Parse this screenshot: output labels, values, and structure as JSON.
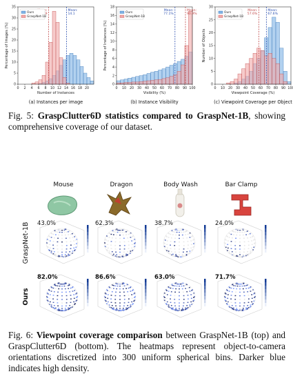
{
  "chart_data": [
    {
      "type": "histogram",
      "title": "(a) Instances per image",
      "x_label": "Number of Instances",
      "y_label": "Percentage of Images (%)",
      "bins": [
        0,
        1,
        2,
        3,
        4,
        5,
        6,
        7,
        8,
        9,
        10,
        11,
        12,
        13,
        14,
        15,
        16,
        17,
        18,
        19,
        20,
        21,
        22
      ],
      "series": [
        {
          "name": "Ours",
          "color": "#7fb2e5",
          "edge": "#3b78b8",
          "values": [
            0,
            0,
            0,
            0,
            0,
            0,
            0.3,
            0.8,
            1.5,
            2.5,
            4,
            6,
            8.5,
            11,
            13,
            14,
            13,
            11,
            8,
            5,
            3,
            1.5
          ]
        },
        {
          "name": "GraspNet-1B",
          "color": "#f0a8a8",
          "edge": "#c24a4a",
          "values": [
            0,
            0,
            0,
            0,
            0.5,
            1,
            2,
            4,
            10,
            19,
            33,
            28,
            12,
            3,
            0.5,
            0,
            0,
            0,
            0,
            0,
            0,
            0
          ]
        }
      ],
      "annotations": [
        {
          "label": "Mean:",
          "value": 8.9,
          "color": "#c24a4a"
        },
        {
          "label": "Mean:",
          "value": 14.1,
          "color": "#2b4fb0"
        }
      ],
      "xlim": [
        0,
        22
      ],
      "xticks": [
        0,
        2,
        4,
        6,
        8,
        10,
        12,
        14,
        16,
        18,
        20
      ],
      "ylim": [
        0,
        35
      ],
      "yticks": [
        0,
        5,
        10,
        15,
        20,
        25,
        30,
        35
      ],
      "legend": "upper left"
    },
    {
      "type": "histogram",
      "title": "(b) Instance Visibility",
      "x_label": "Visibility (%)",
      "y_label": "Percentage of Instances (%)",
      "bins": [
        0,
        5,
        10,
        15,
        20,
        25,
        30,
        35,
        40,
        45,
        50,
        55,
        60,
        65,
        70,
        75,
        80,
        85,
        90,
        95,
        100
      ],
      "series": [
        {
          "name": "Ours",
          "color": "#7fb2e5",
          "edge": "#3b78b8",
          "values": [
            0.8,
            1,
            1.2,
            1.4,
            1.6,
            1.8,
            2,
            2.2,
            2.5,
            2.8,
            3,
            3.3,
            3.6,
            4,
            4.4,
            4.8,
            5.3,
            5.8,
            6.5,
            7.5
          ]
        },
        {
          "name": "GraspNet-1B",
          "color": "#f0a8a8",
          "edge": "#c24a4a",
          "values": [
            0.3,
            0.3,
            0.4,
            0.4,
            0.5,
            0.5,
            0.6,
            0.7,
            0.8,
            0.9,
            1,
            1.1,
            1.3,
            1.5,
            1.8,
            2.2,
            3,
            4.5,
            9,
            17
          ]
        }
      ],
      "annotations": [
        {
          "label": "Mean:",
          "value": 77.1,
          "value_label": "77.1%",
          "color": "#2b4fb0"
        },
        {
          "label": "Mean:",
          "value": 90.9,
          "value_label": "90.9%",
          "color": "#c24a4a"
        }
      ],
      "xlim": [
        0,
        100
      ],
      "xticks": [
        0,
        10,
        20,
        30,
        40,
        50,
        60,
        70,
        80,
        90,
        100
      ],
      "ylim": [
        0,
        18
      ],
      "yticks": [
        0,
        2,
        4,
        6,
        8,
        10,
        12,
        14,
        16,
        18
      ],
      "legend": "upper left"
    },
    {
      "type": "histogram",
      "title": "(c) Viewpoint Coverage per Object",
      "x_label": "Viewpoint Coverage (%)",
      "y_label": "Number of Objects",
      "bins": [
        0,
        5,
        10,
        15,
        20,
        25,
        30,
        35,
        40,
        45,
        50,
        55,
        60,
        65,
        70,
        75,
        80,
        85,
        90,
        95,
        100
      ],
      "series": [
        {
          "name": "Ours",
          "color": "#7fb2e5",
          "edge": "#3b78b8",
          "values": [
            0,
            0,
            0,
            0,
            0,
            0.5,
            1,
            2,
            3,
            5,
            8,
            10,
            13,
            18,
            22,
            26,
            24,
            14,
            5,
            1
          ]
        },
        {
          "name": "GraspNet-1B",
          "color": "#f0a8a8",
          "edge": "#c24a4a",
          "values": [
            0,
            0,
            0,
            0.5,
            1,
            2,
            4,
            6,
            8,
            10,
            12,
            14,
            13,
            11,
            12,
            10,
            8,
            4,
            1,
            0
          ]
        }
      ],
      "annotations": [
        {
          "label": "Mean:",
          "value": 57.6,
          "value_label": "57.6%",
          "color": "#c24a4a"
        },
        {
          "label": "Mean:",
          "value": 67.6,
          "value_label": "67.6%",
          "color": "#2b4fb0"
        }
      ],
      "xlim": [
        0,
        100
      ],
      "xticks": [
        0,
        10,
        20,
        30,
        40,
        50,
        60,
        70,
        80,
        90,
        100
      ],
      "ylim": [
        0,
        30
      ],
      "yticks": [
        0,
        5,
        10,
        15,
        20,
        25,
        30
      ],
      "legend": "upper left"
    }
  ],
  "fig5_caption": {
    "label": "Fig. 5:",
    "bold": "GraspClutter6D statistics compared to GraspNet-1B",
    "text": ", showing comprehensive coverage of our dataset."
  },
  "fig6": {
    "objects": [
      "Mouse",
      "Dragon",
      "Body Wash",
      "Bar Clamp"
    ],
    "rows": [
      {
        "label": "GraspNet-1B",
        "coverage": [
          "43.0%",
          "62.3%",
          "38.7%",
          "24.0%"
        ]
      },
      {
        "label": "Ours",
        "coverage": [
          "82.0%",
          "86.6%",
          "63.0%",
          "71.7%"
        ]
      }
    ]
  },
  "fig6_caption": {
    "label": "Fig. 6:",
    "bold": "Viewpoint coverage comparison",
    "text": " between GraspNet-1B (top) and GraspClutter6D (bottom). The heatmaps represent object-to-camera orientations discretized into 300 uniform spherical bins. Darker blue indicates high density."
  }
}
